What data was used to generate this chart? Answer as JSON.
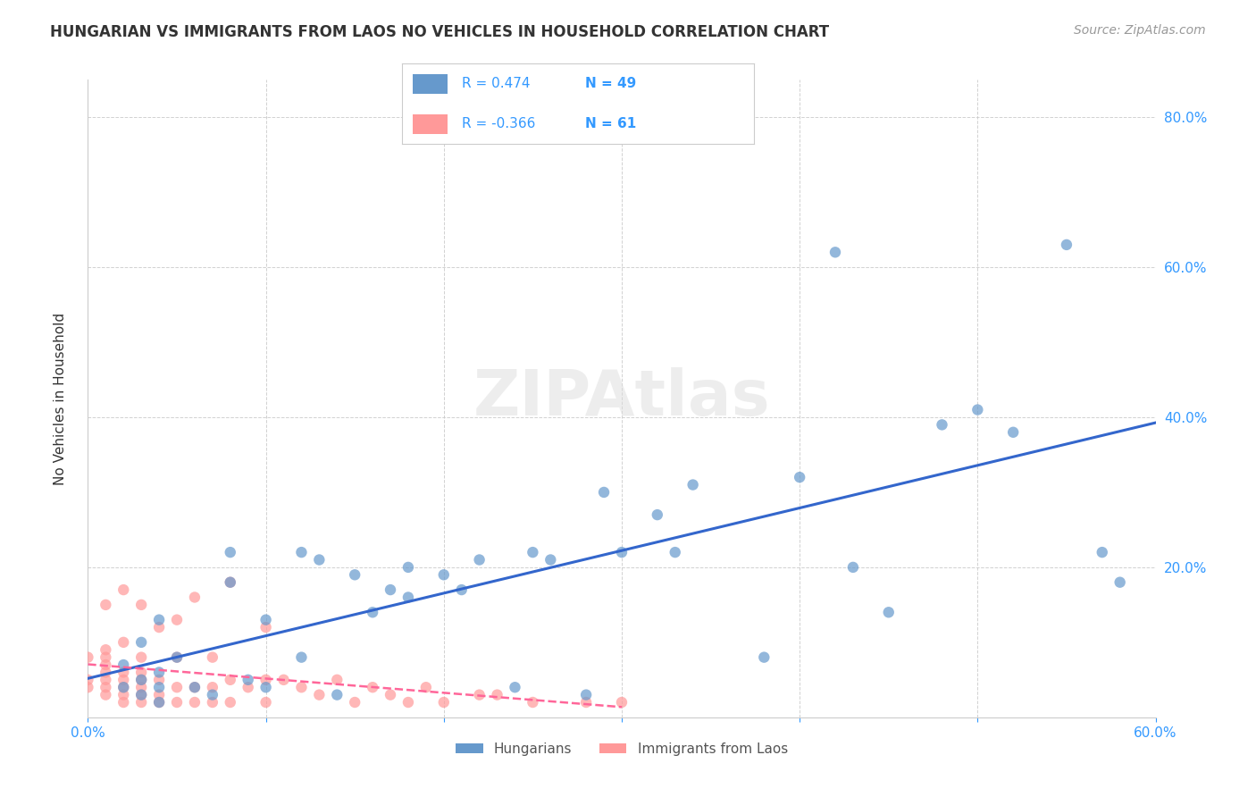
{
  "title": "HUNGARIAN VS IMMIGRANTS FROM LAOS NO VEHICLES IN HOUSEHOLD CORRELATION CHART",
  "source": "Source: ZipAtlas.com",
  "xlabel": "",
  "ylabel": "No Vehicles in Household",
  "xlim": [
    0,
    0.6
  ],
  "ylim": [
    0,
    0.85
  ],
  "xticks": [
    0.0,
    0.1,
    0.2,
    0.3,
    0.4,
    0.5,
    0.6
  ],
  "xtick_labels": [
    "0.0%",
    "",
    "",
    "",
    "",
    "",
    "60.0%"
  ],
  "ytick_labels": [
    "20.0%",
    "40.0%",
    "60.0%",
    "80.0%"
  ],
  "yticks": [
    0.2,
    0.4,
    0.6,
    0.8
  ],
  "blue_r": "0.474",
  "blue_n": "49",
  "pink_r": "-0.366",
  "pink_n": "61",
  "blue_color": "#6699CC",
  "pink_color": "#FF9999",
  "line_blue": "#3366CC",
  "line_pink": "#FF6699",
  "blue_x": [
    0.02,
    0.02,
    0.03,
    0.03,
    0.03,
    0.04,
    0.04,
    0.04,
    0.04,
    0.05,
    0.06,
    0.07,
    0.08,
    0.08,
    0.09,
    0.1,
    0.1,
    0.12,
    0.12,
    0.13,
    0.14,
    0.15,
    0.16,
    0.17,
    0.18,
    0.18,
    0.2,
    0.21,
    0.22,
    0.24,
    0.25,
    0.26,
    0.28,
    0.29,
    0.3,
    0.32,
    0.33,
    0.34,
    0.38,
    0.4,
    0.42,
    0.43,
    0.45,
    0.48,
    0.5,
    0.52,
    0.55,
    0.57,
    0.58
  ],
  "blue_y": [
    0.04,
    0.07,
    0.03,
    0.05,
    0.1,
    0.02,
    0.04,
    0.06,
    0.13,
    0.08,
    0.04,
    0.03,
    0.18,
    0.22,
    0.05,
    0.04,
    0.13,
    0.08,
    0.22,
    0.21,
    0.03,
    0.19,
    0.14,
    0.17,
    0.16,
    0.2,
    0.19,
    0.17,
    0.21,
    0.04,
    0.22,
    0.21,
    0.03,
    0.3,
    0.22,
    0.27,
    0.22,
    0.31,
    0.08,
    0.32,
    0.62,
    0.2,
    0.14,
    0.39,
    0.41,
    0.38,
    0.63,
    0.22,
    0.18
  ],
  "pink_x": [
    0.0,
    0.0,
    0.0,
    0.01,
    0.01,
    0.01,
    0.01,
    0.01,
    0.01,
    0.01,
    0.01,
    0.02,
    0.02,
    0.02,
    0.02,
    0.02,
    0.02,
    0.02,
    0.03,
    0.03,
    0.03,
    0.03,
    0.03,
    0.03,
    0.03,
    0.04,
    0.04,
    0.04,
    0.04,
    0.05,
    0.05,
    0.05,
    0.05,
    0.06,
    0.06,
    0.06,
    0.07,
    0.07,
    0.07,
    0.08,
    0.08,
    0.08,
    0.09,
    0.1,
    0.1,
    0.1,
    0.11,
    0.12,
    0.13,
    0.14,
    0.15,
    0.16,
    0.17,
    0.18,
    0.19,
    0.2,
    0.22,
    0.23,
    0.25,
    0.28,
    0.3
  ],
  "pink_y": [
    0.04,
    0.05,
    0.08,
    0.03,
    0.04,
    0.05,
    0.06,
    0.07,
    0.08,
    0.09,
    0.15,
    0.02,
    0.03,
    0.04,
    0.05,
    0.06,
    0.1,
    0.17,
    0.02,
    0.03,
    0.04,
    0.05,
    0.06,
    0.08,
    0.15,
    0.02,
    0.03,
    0.05,
    0.12,
    0.02,
    0.04,
    0.08,
    0.13,
    0.02,
    0.04,
    0.16,
    0.02,
    0.04,
    0.08,
    0.02,
    0.05,
    0.18,
    0.04,
    0.02,
    0.05,
    0.12,
    0.05,
    0.04,
    0.03,
    0.05,
    0.02,
    0.04,
    0.03,
    0.02,
    0.04,
    0.02,
    0.03,
    0.03,
    0.02,
    0.02,
    0.02
  ],
  "watermark": "ZIPAtlas",
  "bg_color": "#FFFFFF"
}
